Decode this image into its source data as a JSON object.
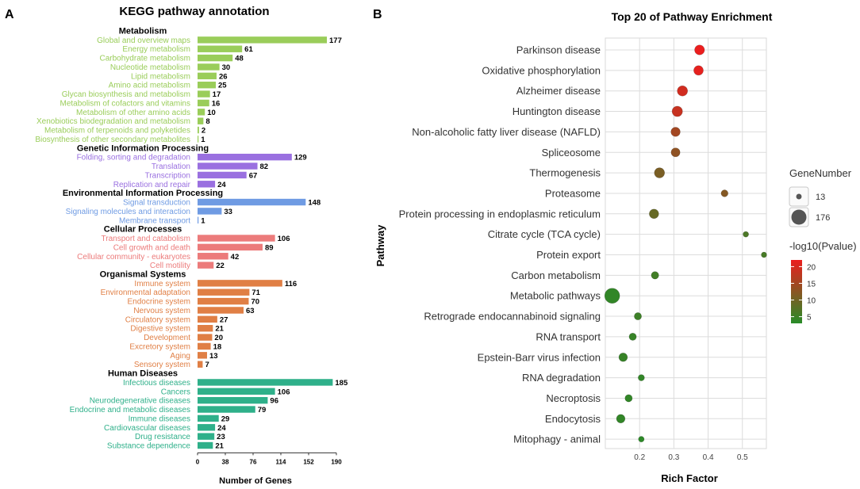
{
  "chart_data": [
    {
      "panel": "A",
      "type": "bar",
      "orientation": "horizontal",
      "title": "KEGG pathway annotation",
      "xlabel": "Number of Genes",
      "xticks": [
        0,
        38,
        76,
        114,
        152,
        190
      ],
      "xlim": [
        0,
        190
      ],
      "groups": [
        {
          "name": "Metabolism",
          "color": "#9acd5a",
          "items": [
            {
              "label": "Global and overview maps",
              "value": 177
            },
            {
              "label": "Energy metabolism",
              "value": 61
            },
            {
              "label": "Carbohydrate metabolism",
              "value": 48
            },
            {
              "label": "Nucleotide metabolism",
              "value": 30
            },
            {
              "label": "Lipid metabolism",
              "value": 26
            },
            {
              "label": "Amino acid metabolism",
              "value": 25
            },
            {
              "label": "Glycan biosynthesis and metabolism",
              "value": 17
            },
            {
              "label": "Metabolism of cofactors and vitamins",
              "value": 16
            },
            {
              "label": "Metabolism of other amino acids",
              "value": 10
            },
            {
              "label": "Xenobiotics biodegradation and metabolism",
              "value": 8
            },
            {
              "label": "Metabolism of terpenoids and polyketides",
              "value": 2
            },
            {
              "label": "Biosynthesis of other secondary metabolites",
              "value": 1
            }
          ]
        },
        {
          "name": "Genetic Information Processing",
          "color": "#9a70e0",
          "items": [
            {
              "label": "Folding, sorting and degradation",
              "value": 129
            },
            {
              "label": "Translation",
              "value": 82
            },
            {
              "label": "Transcription",
              "value": 67
            },
            {
              "label": "Replication and repair",
              "value": 24
            }
          ]
        },
        {
          "name": "Environmental Information Processing",
          "color": "#6f9be3",
          "items": [
            {
              "label": "Signal transduction",
              "value": 148
            },
            {
              "label": "Signaling molecules and interaction",
              "value": 33
            },
            {
              "label": "Membrane transport",
              "value": 1
            }
          ]
        },
        {
          "name": "Cellular Processes",
          "color": "#ec7b7b",
          "items": [
            {
              "label": "Transport and catabolism",
              "value": 106
            },
            {
              "label": "Cell growth and death",
              "value": 89
            },
            {
              "label": "Cellular community - eukaryotes",
              "value": 42
            },
            {
              "label": "Cell motility",
              "value": 22
            }
          ]
        },
        {
          "name": "Organismal Systems",
          "color": "#e07f45",
          "items": [
            {
              "label": "Immune system",
              "value": 116
            },
            {
              "label": "Environmental adaptation",
              "value": 71
            },
            {
              "label": "Endocrine system",
              "value": 70
            },
            {
              "label": "Nervous system",
              "value": 63
            },
            {
              "label": "Circulatory system",
              "value": 27
            },
            {
              "label": "Digestive system",
              "value": 21
            },
            {
              "label": "Development",
              "value": 20
            },
            {
              "label": "Excretory system",
              "value": 18
            },
            {
              "label": "Aging",
              "value": 13
            },
            {
              "label": "Sensory system",
              "value": 7
            }
          ]
        },
        {
          "name": "Human Diseases",
          "color": "#2fb08a",
          "items": [
            {
              "label": "Infectious diseases",
              "value": 185
            },
            {
              "label": "Cancers",
              "value": 106
            },
            {
              "label": "Neurodegenerative diseases",
              "value": 96
            },
            {
              "label": "Endocrine and metabolic diseases",
              "value": 79
            },
            {
              "label": "Immune diseases",
              "value": 29
            },
            {
              "label": "Cardiovascular diseases",
              "value": 24
            },
            {
              "label": "Drug resistance",
              "value": 23
            },
            {
              "label": "Substance dependence",
              "value": 21
            }
          ]
        }
      ]
    },
    {
      "panel": "B",
      "type": "scatter",
      "title": "Top 20 of Pathway Enrichment",
      "xlabel": "Rich Factor",
      "ylabel": "Pathway",
      "xticks": [
        0.2,
        0.3,
        0.4,
        0.5
      ],
      "xlim": [
        0.1,
        0.57
      ],
      "size_legend_title": "GeneNumber",
      "size_legend": [
        13,
        176
      ],
      "color_legend_title": "-log10(Pvalue)",
      "color_legend_ticks": [
        20,
        15,
        10,
        5
      ],
      "color_range": [
        3,
        22
      ],
      "points": [
        {
          "pathway": "Parkinson disease",
          "rich_factor": 0.375,
          "gene_number": 65,
          "neglog10p": 22
        },
        {
          "pathway": "Oxidative phosphorylation",
          "rich_factor": 0.372,
          "gene_number": 60,
          "neglog10p": 21.5
        },
        {
          "pathway": "Alzheimer disease",
          "rich_factor": 0.325,
          "gene_number": 72,
          "neglog10p": 19.5
        },
        {
          "pathway": "Huntington disease",
          "rich_factor": 0.31,
          "gene_number": 74,
          "neglog10p": 18.5
        },
        {
          "pathway": "Non-alcoholic fatty liver disease (NAFLD)",
          "rich_factor": 0.305,
          "gene_number": 55,
          "neglog10p": 15
        },
        {
          "pathway": "Spliceosome",
          "rich_factor": 0.305,
          "gene_number": 50,
          "neglog10p": 13
        },
        {
          "pathway": "Thermogenesis",
          "rich_factor": 0.258,
          "gene_number": 70,
          "neglog10p": 11
        },
        {
          "pathway": "Proteasome",
          "rich_factor": 0.448,
          "gene_number": 26,
          "neglog10p": 12
        },
        {
          "pathway": "Protein processing in endoplasmic reticulum",
          "rich_factor": 0.242,
          "gene_number": 58,
          "neglog10p": 9
        },
        {
          "pathway": "Citrate cycle (TCA cycle)",
          "rich_factor": 0.51,
          "gene_number": 14,
          "neglog10p": 6.5
        },
        {
          "pathway": "Protein export",
          "rich_factor": 0.563,
          "gene_number": 13,
          "neglog10p": 6
        },
        {
          "pathway": "Carbon metabolism",
          "rich_factor": 0.245,
          "gene_number": 32,
          "neglog10p": 5.5
        },
        {
          "pathway": "Metabolic pathways",
          "rich_factor": 0.12,
          "gene_number": 176,
          "neglog10p": 4
        },
        {
          "pathway": "Retrograde endocannabinoid signaling",
          "rich_factor": 0.195,
          "gene_number": 30,
          "neglog10p": 5
        },
        {
          "pathway": "RNA transport",
          "rich_factor": 0.18,
          "gene_number": 30,
          "neglog10p": 4.5
        },
        {
          "pathway": "Epstein-Barr virus infection",
          "rich_factor": 0.152,
          "gene_number": 45,
          "neglog10p": 4.5
        },
        {
          "pathway": "RNA degradation",
          "rich_factor": 0.205,
          "gene_number": 20,
          "neglog10p": 4
        },
        {
          "pathway": "Necroptosis",
          "rich_factor": 0.168,
          "gene_number": 30,
          "neglog10p": 4
        },
        {
          "pathway": "Endocytosis",
          "rich_factor": 0.145,
          "gene_number": 45,
          "neglog10p": 4
        },
        {
          "pathway": "Mitophagy - animal",
          "rich_factor": 0.205,
          "gene_number": 15,
          "neglog10p": 3.5
        }
      ]
    }
  ],
  "panel_letters": {
    "a": "A",
    "b": "B"
  }
}
